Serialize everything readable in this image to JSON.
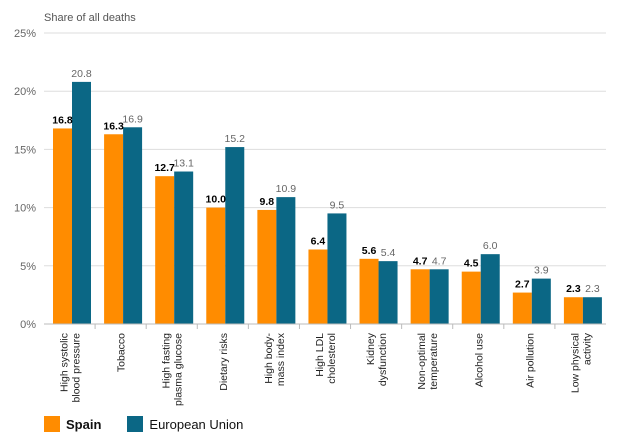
{
  "chart_data": {
    "type": "bar",
    "ylabel": "Share of all deaths",
    "ylim": [
      0,
      25
    ],
    "yticks": [
      "0%",
      "5%",
      "10%",
      "15%",
      "20%",
      "25%"
    ],
    "grid": true,
    "legend_position": "bottom-left",
    "categories": [
      [
        "High systolic",
        "blood pressure"
      ],
      [
        "Tobacco"
      ],
      [
        "High fasting",
        "plasma glucose"
      ],
      [
        "Dietary risks"
      ],
      [
        "High body-",
        "mass index"
      ],
      [
        "High LDL",
        "cholesterol"
      ],
      [
        "Kidney",
        "dysfunction"
      ],
      [
        "Non-optimal",
        "temperature"
      ],
      [
        "Alcohol use"
      ],
      [
        "Air pollution"
      ],
      [
        "Low physical",
        "activity"
      ]
    ],
    "series": [
      {
        "name": "Spain",
        "color": "#FF8C00",
        "values": [
          16.8,
          16.3,
          12.7,
          10.0,
          9.8,
          6.4,
          5.6,
          4.7,
          4.5,
          2.7,
          2.3
        ],
        "labels": [
          "16.8",
          "16.3",
          "12.7",
          "10.0",
          "9.8",
          "6.4",
          "5.6",
          "4.7",
          "4.5",
          "2.7",
          "2.3"
        ]
      },
      {
        "name": "European Union",
        "color": "#0B6785",
        "values": [
          20.8,
          16.9,
          13.1,
          15.2,
          10.9,
          9.5,
          5.4,
          4.7,
          6.0,
          3.9,
          2.3
        ],
        "labels": [
          "20.8",
          "16.9",
          "13.1",
          "15.2",
          "10.9",
          "9.5",
          "5.4",
          "4.7",
          "6.0",
          "3.9",
          "2.3"
        ]
      }
    ]
  },
  "legend": {
    "spain": "Spain",
    "eu": "European Union"
  }
}
